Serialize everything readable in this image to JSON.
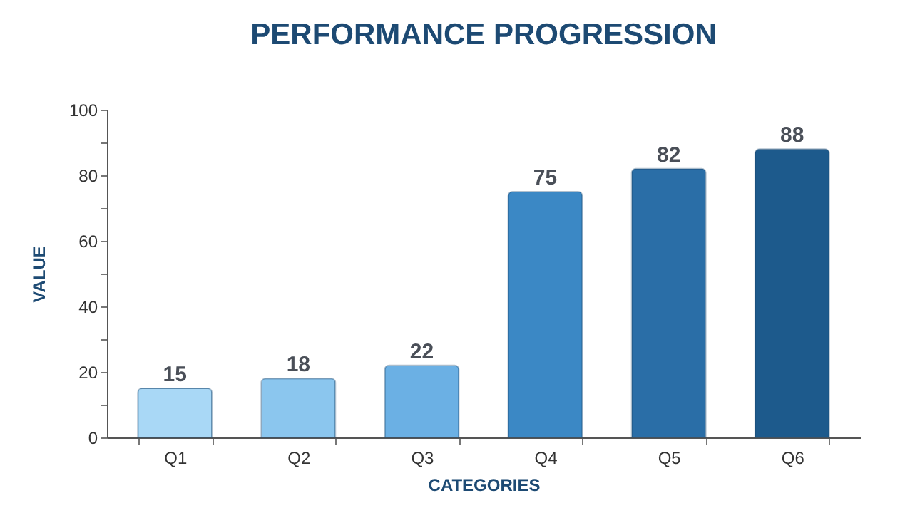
{
  "chart_data": {
    "type": "bar",
    "title": "PERFORMANCE PROGRESSION",
    "xlabel": "CATEGORIES",
    "ylabel": "VALUE",
    "categories": [
      "Q1",
      "Q2",
      "Q3",
      "Q4",
      "Q5",
      "Q6"
    ],
    "values": [
      15,
      18,
      22,
      75,
      82,
      88
    ],
    "colors": [
      "#a9d8f6",
      "#8bc6ee",
      "#6bb0e4",
      "#3b88c5",
      "#2a6ea7",
      "#1d5a8c"
    ],
    "ylim": [
      0,
      100
    ],
    "yticks": [
      0,
      {
        "value": 10,
        "label": null
      },
      20,
      {
        "value": 30,
        "label": null
      },
      40,
      {
        "value": 50,
        "label": null
      },
      60,
      {
        "value": 70,
        "label": null
      },
      80,
      {
        "value": 90,
        "label": null
      },
      100
    ],
    "grid": false,
    "data_labels": true
  }
}
